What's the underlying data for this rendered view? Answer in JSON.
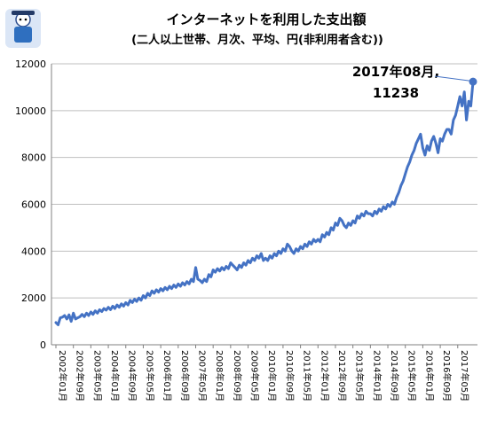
{
  "chart_data": {
    "type": "line",
    "title": "インターネットを利用した支出額",
    "subtitle": "(二人以上世帯、月次、平均、円(非利用者含む))",
    "ylim": [
      0,
      12000
    ],
    "yticks": [
      "0",
      "2000",
      "4000",
      "6000",
      "8000",
      "10000",
      "12000"
    ],
    "grid": true,
    "legend": "none",
    "xtick_labels": [
      "2002年01月",
      "2002年09月",
      "2003年05月",
      "2004年01月",
      "2004年09月",
      "2005年05月",
      "2006年01月",
      "2006年09月",
      "2007年05月",
      "2008年01月",
      "2008年09月",
      "2009年05月",
      "2010年01月",
      "2010年09月",
      "2011年05月",
      "2012年01月",
      "2012年09月",
      "2013年05月",
      "2014年01月",
      "2014年09月",
      "2015年05月",
      "2016年01月",
      "2016年09月",
      "2017年05月"
    ],
    "x_start": "2002年01月",
    "x_end": "2017年08月",
    "annotation": {
      "line1": "2017年08月,",
      "line2": "11238",
      "value": 11238
    },
    "series": [
      {
        "color": "#4472c4",
        "values": [
          950,
          850,
          1150,
          1180,
          1250,
          1100,
          1280,
          1000,
          1350,
          1100,
          1150,
          1200,
          1300,
          1200,
          1350,
          1250,
          1400,
          1300,
          1450,
          1350,
          1500,
          1420,
          1550,
          1480,
          1600,
          1500,
          1650,
          1550,
          1700,
          1600,
          1750,
          1650,
          1800,
          1700,
          1900,
          1800,
          1950,
          1850,
          2000,
          1900,
          2100,
          2000,
          2200,
          2100,
          2300,
          2200,
          2350,
          2250,
          2400,
          2300,
          2450,
          2350,
          2500,
          2400,
          2550,
          2450,
          2600,
          2500,
          2650,
          2550,
          2700,
          2600,
          2800,
          2700,
          3300,
          2800,
          2750,
          2650,
          2800,
          2700,
          3000,
          2900,
          3200,
          3100,
          3250,
          3150,
          3300,
          3200,
          3350,
          3250,
          3500,
          3400,
          3300,
          3200,
          3400,
          3300,
          3500,
          3400,
          3600,
          3500,
          3700,
          3600,
          3800,
          3700,
          3900,
          3600,
          3700,
          3600,
          3800,
          3700,
          3900,
          3800,
          4000,
          3900,
          4100,
          4000,
          4300,
          4200,
          4000,
          3900,
          4100,
          4000,
          4200,
          4100,
          4300,
          4200,
          4400,
          4300,
          4500,
          4400,
          4500,
          4400,
          4700,
          4600,
          4800,
          4700,
          5000,
          4900,
          5200,
          5100,
          5400,
          5300,
          5100,
          5000,
          5200,
          5100,
          5300,
          5200,
          5500,
          5400,
          5600,
          5500,
          5700,
          5600,
          5600,
          5500,
          5700,
          5600,
          5800,
          5700,
          5900,
          5800,
          6000,
          5900,
          6100,
          6000,
          6300,
          6500,
          6800,
          7000,
          7300,
          7600,
          7800,
          8100,
          8300,
          8600,
          8800,
          9000,
          8400,
          8100,
          8500,
          8300,
          8700,
          8900,
          8600,
          8200,
          8800,
          8700,
          9000,
          9200,
          9200,
          9000,
          9600,
          9800,
          10200,
          10600,
          10200,
          10800,
          9600,
          10400,
          10200,
          11238
        ]
      }
    ]
  }
}
